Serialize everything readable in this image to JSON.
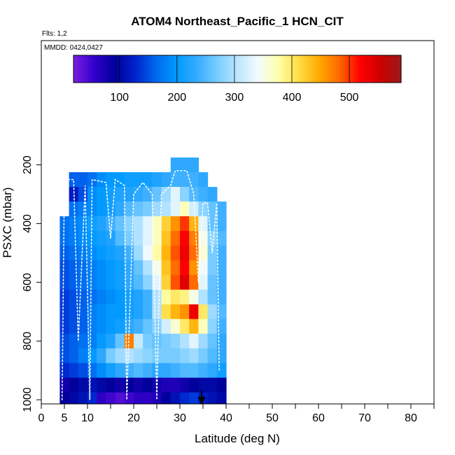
{
  "chart_data": {
    "type": "heatmap",
    "title": "ATOM4 Northeast_Pacific_1 HCN_CIT",
    "annotations": {
      "flights": "Flts: 1,2",
      "dates": "MMDD: 0424,0427"
    },
    "xlabel": "Latitude (deg N)",
    "ylabel": "PSXC (mbar)",
    "xlim": [
      0,
      85
    ],
    "ylim": [
      1020,
      130
    ],
    "x_tick_labels": [
      "0",
      "5",
      "10",
      "20",
      "30",
      "40",
      "50",
      "60",
      "70",
      "80"
    ],
    "x_tick_values": [
      0,
      5,
      10,
      20,
      30,
      40,
      50,
      60,
      70,
      80
    ],
    "y_tick_labels": [
      "200",
      "400",
      "600",
      "800",
      "1000"
    ],
    "y_tick_values": [
      200,
      400,
      600,
      800,
      1000
    ],
    "colorbar": {
      "range": [
        20,
        590
      ],
      "tick_labels": [
        "100",
        "200",
        "300",
        "400",
        "500"
      ],
      "tick_values": [
        100,
        200,
        300,
        400,
        500
      ],
      "palette": [
        "#7a1fe0",
        "#3300cc",
        "#000099",
        "#0022cc",
        "#0066ee",
        "#0099ff",
        "#33aaff",
        "#77ccff",
        "#bbe6ff",
        "#f2fbff",
        "#ffffaa",
        "#ffdd44",
        "#ffaa00",
        "#ff6600",
        "#ff0000",
        "#cc0000",
        "#9a1a1a"
      ]
    },
    "lat_bin_edges": [
      4,
      6,
      8,
      10,
      12,
      14,
      16,
      18,
      20,
      22,
      24,
      26,
      28,
      30,
      32,
      34,
      36,
      38,
      40
    ],
    "pressure_levels": [
      {
        "p": 200,
        "values": [
          null,
          null,
          null,
          null,
          null,
          null,
          null,
          null,
          null,
          null,
          null,
          null,
          230,
          230,
          230,
          null,
          null,
          null
        ]
      },
      {
        "p": 250,
        "values": [
          null,
          160,
          160,
          170,
          190,
          200,
          200,
          210,
          210,
          210,
          220,
          230,
          240,
          240,
          240,
          230,
          null,
          null
        ]
      },
      {
        "p": 300,
        "values": [
          null,
          120,
          150,
          190,
          200,
          210,
          220,
          220,
          230,
          240,
          260,
          290,
          330,
          280,
          250,
          240,
          230,
          null
        ]
      },
      {
        "p": 350,
        "values": [
          null,
          170,
          180,
          190,
          200,
          210,
          230,
          250,
          260,
          270,
          290,
          300,
          330,
          370,
          320,
          280,
          260,
          240
        ]
      },
      {
        "p": 400,
        "values": [
          170,
          180,
          190,
          210,
          220,
          240,
          260,
          280,
          300,
          330,
          370,
          420,
          460,
          500,
          440,
          330,
          260,
          240
        ]
      },
      {
        "p": 450,
        "values": [
          170,
          180,
          190,
          200,
          210,
          220,
          250,
          270,
          300,
          330,
          370,
          430,
          480,
          520,
          470,
          350,
          280,
          250
        ]
      },
      {
        "p": 500,
        "values": [
          160,
          170,
          180,
          190,
          200,
          210,
          220,
          240,
          290,
          340,
          380,
          440,
          490,
          530,
          480,
          360,
          270,
          240
        ]
      },
      {
        "p": 550,
        "values": [
          150,
          160,
          170,
          180,
          190,
          200,
          210,
          230,
          260,
          300,
          350,
          430,
          480,
          520,
          460,
          340,
          270,
          240
        ]
      },
      {
        "p": 600,
        "values": [
          150,
          160,
          170,
          180,
          190,
          200,
          210,
          230,
          250,
          280,
          330,
          420,
          490,
          540,
          480,
          330,
          260,
          240
        ]
      },
      {
        "p": 650,
        "values": [
          140,
          150,
          160,
          170,
          180,
          190,
          200,
          210,
          220,
          240,
          300,
          380,
          400,
          390,
          350,
          300,
          260,
          240
        ]
      },
      {
        "p": 700,
        "values": [
          140,
          150,
          160,
          180,
          190,
          200,
          200,
          210,
          220,
          240,
          300,
          410,
          440,
          460,
          530,
          400,
          290,
          250
        ]
      },
      {
        "p": 750,
        "values": [
          140,
          150,
          160,
          180,
          190,
          200,
          210,
          230,
          240,
          260,
          280,
          320,
          360,
          400,
          440,
          370,
          280,
          240
        ]
      },
      {
        "p": 800,
        "values": [
          150,
          160,
          170,
          180,
          200,
          220,
          260,
          470,
          310,
          270,
          260,
          270,
          280,
          300,
          330,
          290,
          260,
          230
        ]
      },
      {
        "p": 850,
        "values": [
          150,
          160,
          180,
          200,
          230,
          270,
          290,
          300,
          290,
          280,
          270,
          270,
          270,
          280,
          290,
          270,
          250,
          230
        ]
      },
      {
        "p": 900,
        "values": [
          130,
          140,
          150,
          170,
          190,
          210,
          230,
          240,
          250,
          240,
          230,
          230,
          240,
          250,
          250,
          240,
          230,
          210
        ]
      },
      {
        "p": 950,
        "values": [
          80,
          90,
          100,
          110,
          100,
          90,
          80,
          90,
          80,
          90,
          80,
          70,
          70,
          80,
          90,
          100,
          100,
          90
        ]
      },
      {
        "p": 1000,
        "values": [
          90,
          100,
          110,
          130,
          60,
          50,
          40,
          50,
          60,
          60,
          70,
          90,
          110,
          130,
          140,
          120,
          110,
          100
        ]
      }
    ]
  }
}
